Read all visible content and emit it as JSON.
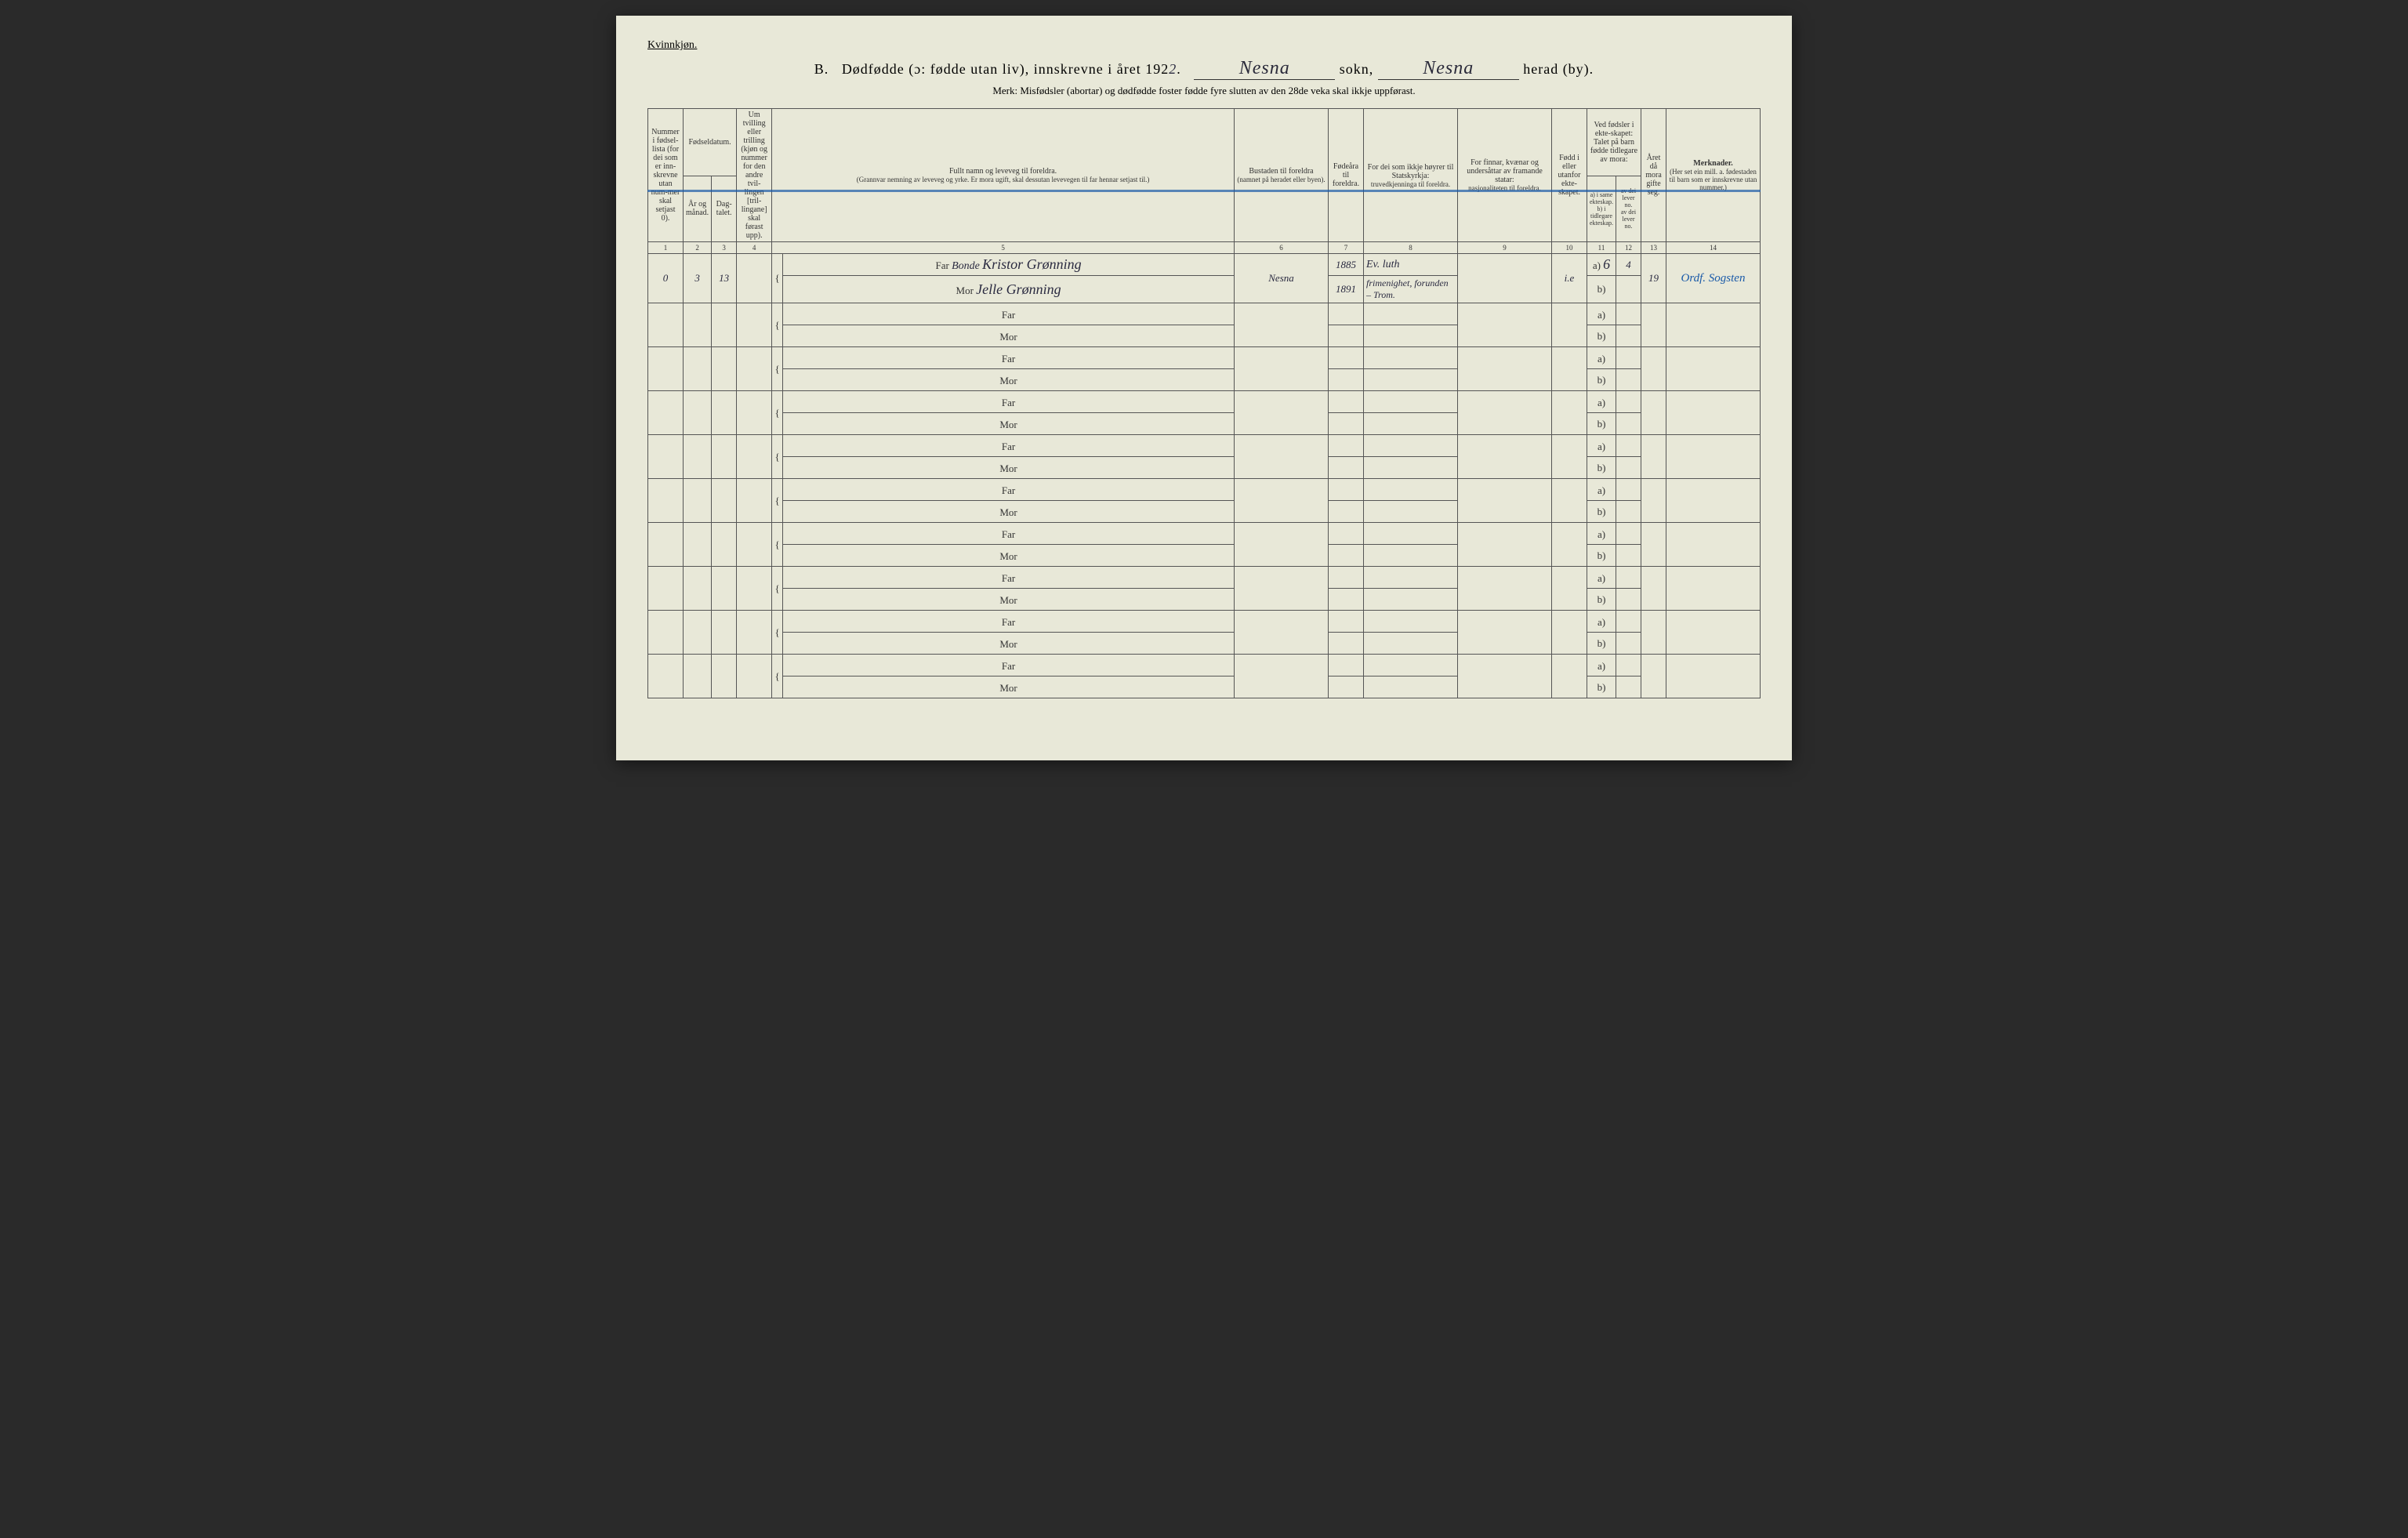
{
  "header": {
    "gender": "Kvinnkjøn.",
    "section_letter": "B.",
    "title_main": "Dødfødde (ɔ: fødde utan liv), innskrevne i året 192",
    "year_suffix": "2",
    "sokn_label": "sokn,",
    "herad_label": "herad (by).",
    "sokn_value": "Nesna",
    "herad_value": "Nesna",
    "subtitle": "Merk: Misfødsler (abortar) og dødfødde foster fødde fyre slutten av den 28de veka skal ikkje uppførast."
  },
  "columns": {
    "c1": "Nummer i fødsel-lista (for dei som er inn-skrevne utan num-mer skal setjast 0).",
    "c2_group": "Fødseldatum.",
    "c2": "År og månad.",
    "c3": "Dag-talet.",
    "c4": "Um tvilling eller trilling (kjøn og nummer for den andre tvil-lingen [tril-lingane] skal førast upp).",
    "c5_title": "Fullt namn og leveveg til foreldra.",
    "c5_sub": "(Grannvar nemning av leveveg og yrke. Er mora ugift, skal dessutan levevegen til far hennar setjast til.)",
    "c6_title": "Bustaden til foreldra",
    "c6_sub": "(namnet på heradet eller byen).",
    "c7": "Fødeåra til foreldra.",
    "c8_title": "For dei som ikkje høyrer til Statskyrkja:",
    "c8_sub": "truvedkjenninga til foreldra.",
    "c9_title": "For finnar, kvænar og undersåttar av framande statar:",
    "c9_sub": "nasjonaliteten til foreldra.",
    "c10": "Fødd i eller utanfor ekte-skapet.",
    "c11_group": "Ved fødsler i ekte-skapet: Talet på barn fødde tidlegare av mora:",
    "c11a": "a) i same ekteskap.",
    "c11b": "b) i tidlegare ekteskap.",
    "c12a": "av dei lever no.",
    "c12b": "av dei lever no.",
    "c13": "Året då mora gifte seg.",
    "c14_title": "Merknader.",
    "c14_sub": "(Her set ein mill. a. fødestaden til barn som er innskrevne utan nummer.)"
  },
  "colnums": [
    "1",
    "2",
    "3",
    "4",
    "5",
    "6",
    "7",
    "8",
    "9",
    "10",
    "11",
    "12",
    "13",
    "14"
  ],
  "labels": {
    "far": "Far",
    "mor": "Mor",
    "a": "a)",
    "b": "b)"
  },
  "entry": {
    "num": "0",
    "month": "3",
    "day": "13",
    "far_occ": "Bonde",
    "far_name": "Kristor Grønning",
    "mor_name": "Jelle Grønning",
    "bustad": "Nesna",
    "far_year": "1885",
    "mor_year": "1891",
    "far_rel": "Ev. luth",
    "mor_rel": "frimenighet, forunden – Trom.",
    "ekte": "i.e",
    "c11": "6",
    "c12": "4",
    "c13": "19",
    "merk": "Ordf. Sogsten"
  },
  "colors": {
    "paper": "#e8e8d8",
    "ink": "#333333",
    "handwriting": "#2a2a40",
    "blueline": "#1a5aa8"
  }
}
